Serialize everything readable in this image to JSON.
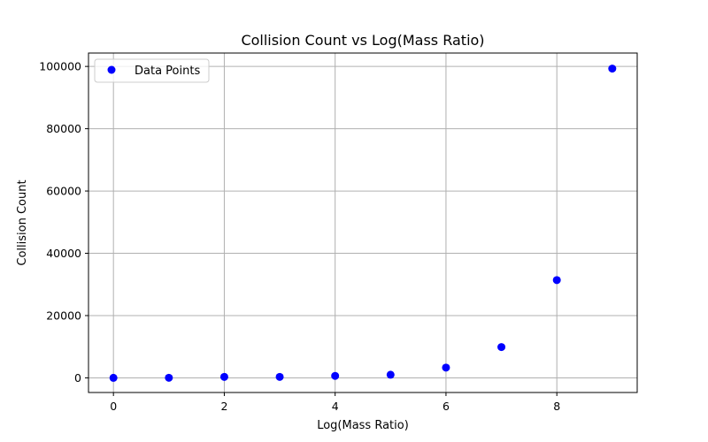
{
  "chart_data": {
    "type": "scatter",
    "title": "Collision Count vs Log(Mass Ratio)",
    "xlabel": "Log(Mass Ratio)",
    "ylabel": "Collision Count",
    "xlim": [
      -0.45,
      9.45
    ],
    "ylim": [
      -4700,
      104300
    ],
    "x_ticks": [
      0,
      2,
      4,
      6,
      8
    ],
    "y_ticks": [
      0,
      20000,
      40000,
      60000,
      80000,
      100000
    ],
    "grid": true,
    "legend": {
      "placement": "upper-left",
      "entries": [
        "Data Points"
      ]
    },
    "series": [
      {
        "name": "Data Points",
        "color": "#0000ff",
        "x": [
          0,
          1,
          2,
          3,
          4,
          5,
          6,
          7,
          8,
          9
        ],
        "y": [
          3,
          31,
          314,
          314,
          628,
          1000,
          3300,
          9900,
          31400,
          99300
        ]
      }
    ]
  }
}
